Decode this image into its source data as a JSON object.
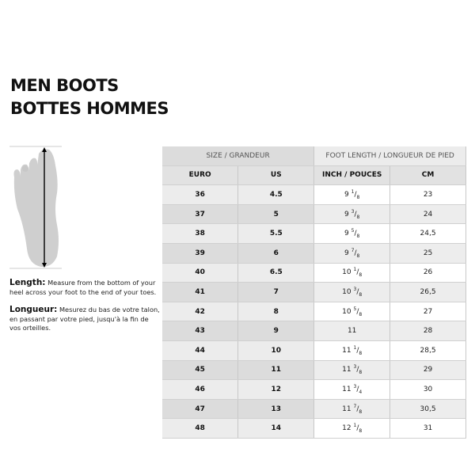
{
  "title": {
    "line1": "MEN BOOTS",
    "line2": "BOTTES HOMMES"
  },
  "description": {
    "en_label": "Length:",
    "en_text": " Measure from the bottom of your heel across your foot to the end of your toes.",
    "fr_label": "Longueur:",
    "fr_text": " Mesurez du bas de votre talon, en passant par votre pied, jusqu'à la fin de vos orteilles."
  },
  "table": {
    "group_headers": [
      "SIZE / GRANDEUR",
      "FOOT LENGTH / LONGUEUR DE PIED"
    ],
    "columns": [
      "EURO",
      "US",
      "INCH / POUCES",
      "CM"
    ],
    "rows": [
      {
        "euro": "36",
        "us": "4.5",
        "inch": "9",
        "num": "1",
        "den": "8",
        "cm": "23"
      },
      {
        "euro": "37",
        "us": "5",
        "inch": "9",
        "num": "3",
        "den": "8",
        "cm": "24"
      },
      {
        "euro": "38",
        "us": "5.5",
        "inch": "9",
        "num": "5",
        "den": "8",
        "cm": "24,5"
      },
      {
        "euro": "39",
        "us": "6",
        "inch": "9",
        "num": "7",
        "den": "8",
        "cm": "25"
      },
      {
        "euro": "40",
        "us": "6.5",
        "inch": "10",
        "num": "1",
        "den": "8",
        "cm": "26"
      },
      {
        "euro": "41",
        "us": "7",
        "inch": "10",
        "num": "3",
        "den": "8",
        "cm": "26,5"
      },
      {
        "euro": "42",
        "us": "8",
        "inch": "10",
        "num": "5",
        "den": "8",
        "cm": "27"
      },
      {
        "euro": "43",
        "us": "9",
        "inch": "11",
        "num": "",
        "den": "",
        "cm": "28"
      },
      {
        "euro": "44",
        "us": "10",
        "inch": "11",
        "num": "1",
        "den": "8",
        "cm": "28,5"
      },
      {
        "euro": "45",
        "us": "11",
        "inch": "11",
        "num": "3",
        "den": "8",
        "cm": "29"
      },
      {
        "euro": "46",
        "us": "12",
        "inch": "11",
        "num": "3",
        "den": "4",
        "cm": "30"
      },
      {
        "euro": "47",
        "us": "13",
        "inch": "11",
        "num": "7",
        "den": "8",
        "cm": "30,5"
      },
      {
        "euro": "48",
        "us": "14",
        "inch": "12",
        "num": "1",
        "den": "8",
        "cm": "31"
      }
    ]
  }
}
